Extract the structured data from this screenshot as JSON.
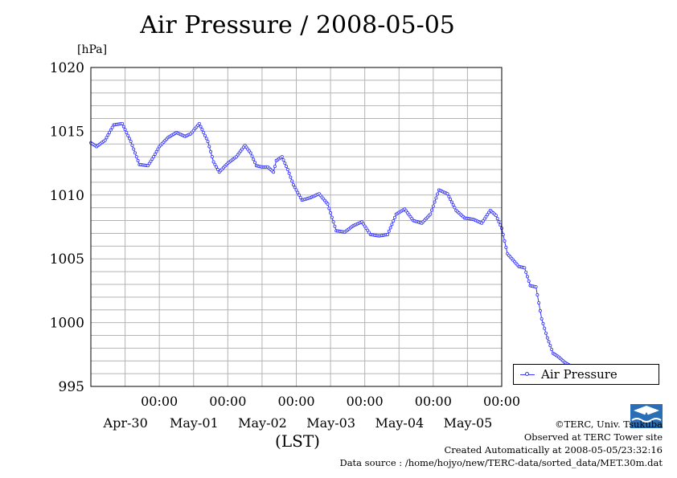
{
  "page": {
    "title": "Air Pressure / 2008-05-05",
    "unit_label": "[hPa]",
    "x_unit_label": "(LST)",
    "legend_label": "Air Pressure",
    "credits": [
      "©TERC, Univ. Tsukuba",
      "Observed at TERC Tower site",
      "Created Automatically at 2008-05-05/23:32:16",
      "Data source : /home/hojyo/new/TERC-data/sorted_data/MET.30m.dat"
    ],
    "logo_text": "TERC",
    "series_color": "#3333ff"
  },
  "chart_data": {
    "type": "line",
    "title": "Air Pressure / 2008-05-05",
    "ylabel": "[hPa]",
    "xlabel": "(LST)",
    "ylim": [
      995,
      1020
    ],
    "y_ticks": [
      995,
      1000,
      1005,
      1010,
      1015,
      1020
    ],
    "xlim_days": [
      0,
      6
    ],
    "x_ticks": [
      {
        "time": "00:00",
        "date": "Apr-30"
      },
      {
        "time": "00:00",
        "date": "May-01"
      },
      {
        "time": "00:00",
        "date": "May-02"
      },
      {
        "time": "00:00",
        "date": "May-03"
      },
      {
        "time": "00:00",
        "date": "May-04"
      },
      {
        "time": "00:00",
        "date": "May-05"
      }
    ],
    "grid": true,
    "legend": "right",
    "series": [
      {
        "name": "Air Pressure",
        "x": [
          "04-29 00:00",
          "04-29 02:00",
          "04-29 05:00",
          "04-29 08:00",
          "04-29 11:00",
          "04-29 14:00",
          "04-29 17:00",
          "04-29 20:00",
          "04-29 22:00",
          "04-30 00:00",
          "04-30 03:00",
          "04-30 06:00",
          "04-30 09:00",
          "04-30 11:00",
          "04-30 14:00",
          "04-30 17:00",
          "04-30 19:00",
          "04-30 21:00",
          "05-01 00:00",
          "05-01 03:00",
          "05-01 06:00",
          "05-01 08:00",
          "05-01 10:00",
          "05-01 12:00",
          "05-01 14:00",
          "05-01 16:00",
          "05-01 17:00",
          "05-01 19:00",
          "05-01 21:00",
          "05-01 23:00",
          "05-02 02:00",
          "05-02 05:00",
          "05-02 08:00",
          "05-02 11:00",
          "05-02 14:00",
          "05-02 17:00",
          "05-02 20:00",
          "05-02 23:00",
          "05-03 02:00",
          "05-03 05:00",
          "05-03 08:00",
          "05-03 11:00",
          "05-03 14:00",
          "05-03 17:00",
          "05-03 20:00",
          "05-03 23:00",
          "05-04 02:00",
          "05-04 05:00",
          "05-04 08:00",
          "05-04 11:00",
          "05-04 14:00",
          "05-04 17:00",
          "05-04 20:00",
          "05-04 22:00",
          "05-05 00:00",
          "05-05 02:00",
          "05-05 04:00",
          "05-05 06:00",
          "05-05 08:00",
          "05-05 10:00",
          "05-05 12:00",
          "05-05 14:00",
          "05-05 16:00",
          "05-05 18:00",
          "05-05 20:00",
          "05-05 22:00",
          "05-05 23:30"
        ],
        "values": [
          1014.1,
          1013.8,
          1014.3,
          1015.5,
          1015.6,
          1014.2,
          1012.4,
          1012.3,
          1013.0,
          1013.8,
          1014.5,
          1014.9,
          1014.6,
          1014.8,
          1015.6,
          1014.2,
          1012.6,
          1011.8,
          1012.5,
          1013.0,
          1013.9,
          1013.3,
          1012.3,
          1012.2,
          1012.2,
          1011.8,
          1012.7,
          1013.0,
          1012.0,
          1010.8,
          1009.6,
          1009.8,
          1010.1,
          1009.3,
          1007.2,
          1007.1,
          1007.6,
          1007.9,
          1006.9,
          1006.8,
          1006.9,
          1008.5,
          1008.9,
          1008.0,
          1007.8,
          1008.5,
          1010.4,
          1010.1,
          1008.8,
          1008.2,
          1008.1,
          1007.8,
          1008.8,
          1008.4,
          1007.4,
          1005.4,
          1004.9,
          1004.4,
          1004.3,
          1002.9,
          1002.8,
          1000.3,
          998.8,
          997.6,
          997.3,
          996.9,
          996.7
        ]
      }
    ]
  }
}
